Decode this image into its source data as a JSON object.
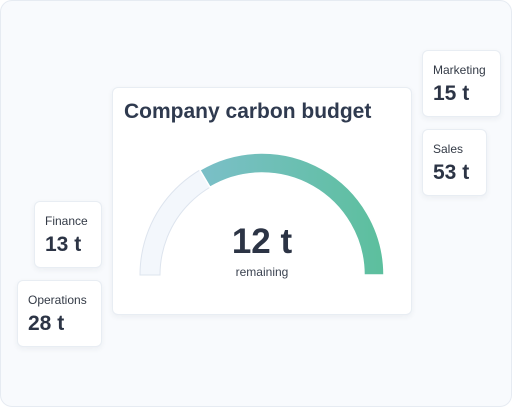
{
  "main": {
    "title": "Company carbon budget",
    "remaining_value": "12 t",
    "remaining_label": "remaining",
    "gauge_fraction": 0.67
  },
  "departments": {
    "marketing": {
      "label": "Marketing",
      "value": "15 t"
    },
    "sales": {
      "label": "Sales",
      "value": "53 t"
    },
    "finance": {
      "label": "Finance",
      "value": "13 t"
    },
    "operations": {
      "label": "Operations",
      "value": "28 t"
    }
  },
  "colors": {
    "gauge_start": "#7bbfc8",
    "gauge_end": "#5cbf9d",
    "track_fill": "#f3f7fc",
    "track_stroke": "#dde4ee"
  }
}
